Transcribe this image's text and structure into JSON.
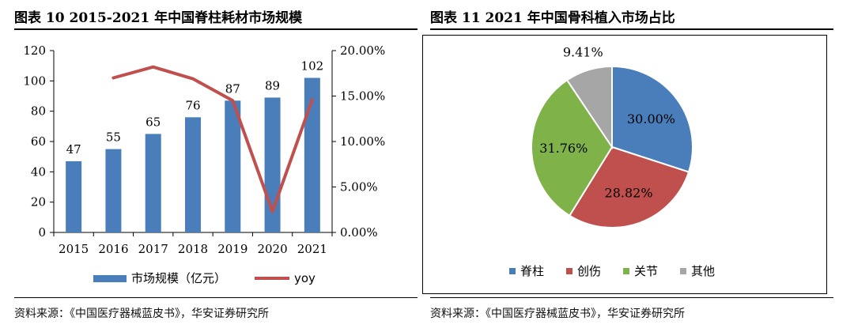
{
  "left_panel": {
    "title": "图表 10 2015-2021 年中国脊柱耗材市场规模",
    "source": "资料来源：《中国医疗器械蓝皮书》，华安证券研究所"
  },
  "right_panel": {
    "title": "图表 11 2021 年中国骨科植入市场占比",
    "source": "资料来源：《中国医疗器械蓝皮书》，华安证券研究所"
  },
  "colors": {
    "bar": "#4A7EBB",
    "line": "#C0504D",
    "pie": [
      "#4A7EBB",
      "#C0504D",
      "#7FB249",
      "#A6A6A6"
    ]
  },
  "chart_data": [
    {
      "type": "bar",
      "categories": [
        "2015",
        "2016",
        "2017",
        "2018",
        "2019",
        "2020",
        "2021"
      ],
      "series": [
        {
          "name": "市场规模（亿元）",
          "type": "bar",
          "axis": "left",
          "values": [
            47,
            55,
            65,
            76,
            87,
            89,
            102
          ]
        },
        {
          "name": "yoy",
          "type": "line",
          "axis": "right",
          "values": [
            null,
            17.0,
            18.2,
            16.9,
            14.5,
            2.3,
            14.6
          ]
        }
      ],
      "ylim": [
        0,
        120
      ],
      "yticks": [
        "0",
        "20",
        "40",
        "60",
        "80",
        "100",
        "120"
      ],
      "y2lim": [
        0,
        20
      ],
      "y2ticks": [
        "0.00%",
        "5.00%",
        "10.00%",
        "15.00%",
        "20.00%"
      ],
      "legend_position": "bottom"
    },
    {
      "type": "pie",
      "labels": [
        "脊柱",
        "创伤",
        "关节",
        "其他"
      ],
      "values": [
        30.0,
        28.82,
        31.76,
        9.41
      ],
      "value_labels": [
        "30.00%",
        "28.82%",
        "31.76%",
        "9.41%"
      ],
      "legend_position": "bottom"
    }
  ]
}
